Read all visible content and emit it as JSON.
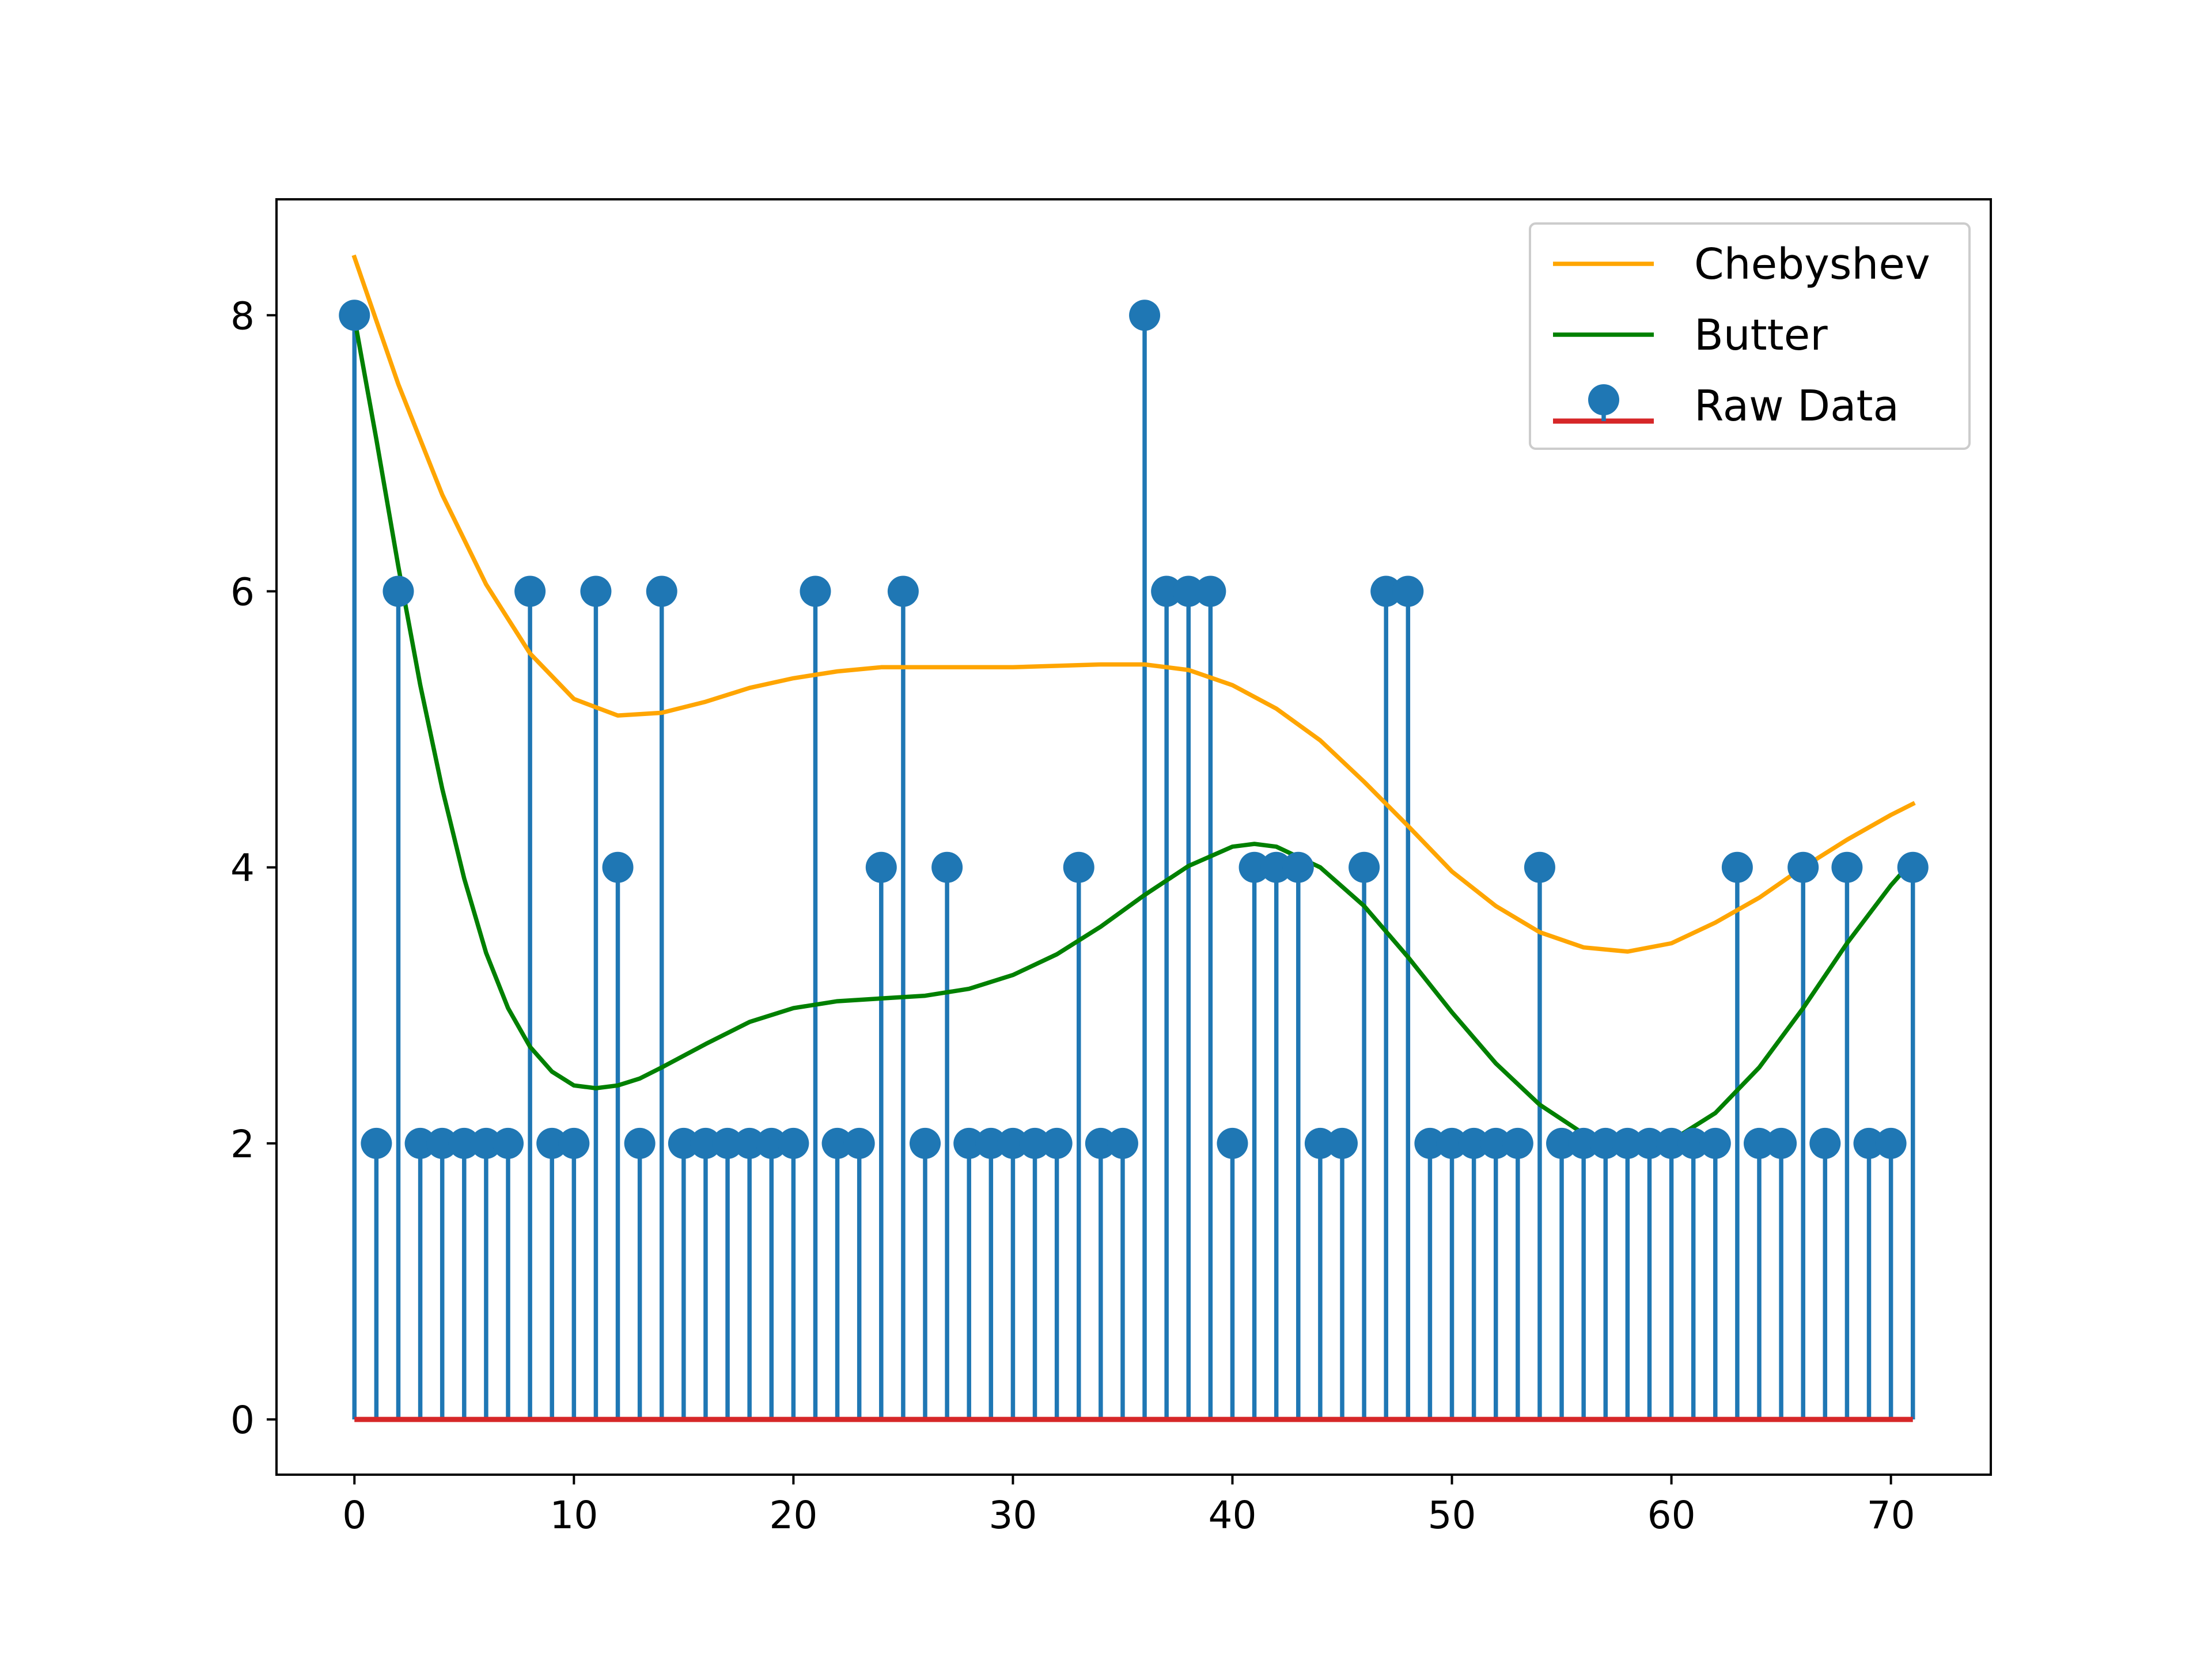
{
  "chart_data": {
    "type": "stem",
    "title": "",
    "xlabel": "",
    "ylabel": "",
    "xlim": [
      -3.55,
      74.55
    ],
    "ylim": [
      -0.4,
      8.84
    ],
    "xticks": [
      0,
      10,
      20,
      30,
      40,
      50,
      60,
      70
    ],
    "yticks": [
      0,
      2,
      4,
      6,
      8
    ],
    "grid": false,
    "legend_position": "upper right",
    "series": [
      {
        "name": "Chebyshev",
        "kind": "line",
        "color": "#ffa500",
        "x": [
          0,
          2,
          4,
          6,
          8,
          10,
          12,
          14,
          16,
          18,
          20,
          22,
          24,
          26,
          28,
          30,
          32,
          34,
          36,
          38,
          40,
          42,
          44,
          46,
          48,
          50,
          52,
          54,
          56,
          58,
          60,
          62,
          64,
          66,
          68,
          70,
          71
        ],
        "y": [
          8.42,
          7.5,
          6.7,
          6.05,
          5.55,
          5.22,
          5.1,
          5.12,
          5.2,
          5.3,
          5.37,
          5.42,
          5.45,
          5.45,
          5.45,
          5.45,
          5.46,
          5.47,
          5.47,
          5.43,
          5.32,
          5.15,
          4.92,
          4.62,
          4.3,
          3.97,
          3.72,
          3.53,
          3.42,
          3.39,
          3.45,
          3.6,
          3.78,
          4.0,
          4.2,
          4.38,
          4.46
        ]
      },
      {
        "name": "Butter",
        "kind": "line",
        "color": "#008000",
        "x": [
          0,
          1,
          2,
          3,
          4,
          5,
          6,
          7,
          8,
          9,
          10,
          11,
          12,
          13,
          14,
          16,
          18,
          20,
          22,
          24,
          26,
          28,
          30,
          32,
          34,
          36,
          38,
          40,
          41,
          42,
          44,
          46,
          48,
          50,
          52,
          54,
          56,
          58,
          60,
          62,
          64,
          66,
          68,
          70,
          71
        ],
        "y": [
          7.98,
          7.1,
          6.18,
          5.32,
          4.57,
          3.92,
          3.38,
          2.98,
          2.7,
          2.52,
          2.42,
          2.4,
          2.42,
          2.47,
          2.55,
          2.72,
          2.88,
          2.98,
          3.03,
          3.05,
          3.07,
          3.12,
          3.22,
          3.37,
          3.57,
          3.8,
          4.01,
          4.15,
          4.17,
          4.15,
          4.0,
          3.72,
          3.35,
          2.95,
          2.58,
          2.28,
          2.07,
          1.98,
          2.02,
          2.22,
          2.55,
          2.98,
          3.45,
          3.87,
          4.05
        ]
      },
      {
        "name": "Raw Data",
        "kind": "stem",
        "marker_color": "#1f77b4",
        "baseline_color": "#d62728",
        "x": [
          0,
          1,
          2,
          3,
          4,
          5,
          6,
          7,
          8,
          9,
          10,
          11,
          12,
          13,
          14,
          15,
          16,
          17,
          18,
          19,
          20,
          21,
          22,
          23,
          24,
          25,
          26,
          27,
          28,
          29,
          30,
          31,
          32,
          33,
          34,
          35,
          36,
          37,
          38,
          39,
          40,
          41,
          42,
          43,
          44,
          45,
          46,
          47,
          48,
          49,
          50,
          51,
          52,
          53,
          54,
          55,
          56,
          57,
          58,
          59,
          60,
          61,
          62,
          63,
          64,
          65,
          66,
          67,
          68,
          69,
          70,
          71
        ],
        "y": [
          8,
          2,
          6,
          2,
          2,
          2,
          2,
          2,
          6,
          2,
          2,
          6,
          4,
          2,
          6,
          2,
          2,
          2,
          2,
          2,
          2,
          6,
          2,
          2,
          4,
          6,
          2,
          4,
          2,
          2,
          2,
          2,
          2,
          4,
          2,
          2,
          8,
          6,
          6,
          6,
          2,
          4,
          4,
          4,
          2,
          2,
          4,
          6,
          6,
          2,
          2,
          2,
          2,
          2,
          4,
          2,
          2,
          2,
          2,
          2,
          2,
          2,
          2,
          4,
          2,
          2,
          4,
          2,
          4,
          2,
          2,
          4
        ]
      }
    ]
  }
}
